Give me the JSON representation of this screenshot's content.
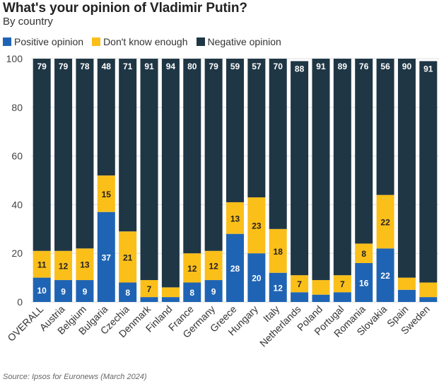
{
  "chart_data": {
    "type": "bar",
    "stacked": true,
    "title": "What's your opinion of Vladimir Putin?",
    "subtitle": "By country",
    "source": "Source: Ipsos for Euronews (March 2024)",
    "ylim": [
      0,
      100
    ],
    "yticks": [
      "0",
      "20",
      "40",
      "60",
      "80",
      "100"
    ],
    "legend_position": "top-left",
    "categories": [
      "OVERALL",
      "Austria",
      "Belgium",
      "Bulgaria",
      "Czechia",
      "Denmark",
      "Finland",
      "France",
      "Germany",
      "Greece",
      "Hungary",
      "Italy",
      "Netherlands",
      "Poland",
      "Portugal",
      "Romania",
      "Slovakia",
      "Spain",
      "Sweden"
    ],
    "series": [
      {
        "name": "Positive opinion",
        "color": "#1f64b4",
        "values": [
          10,
          9,
          9,
          37,
          8,
          2,
          2,
          8,
          9,
          28,
          20,
          12,
          4,
          3,
          4,
          16,
          22,
          5,
          2
        ],
        "labels": [
          "10",
          "9",
          "9",
          "37",
          "8",
          "",
          "",
          "8",
          "9",
          "28",
          "20",
          "12",
          "",
          "",
          "",
          "16",
          "22",
          "",
          ""
        ]
      },
      {
        "name": "Don't know enough",
        "color": "#fbbf1a",
        "values": [
          11,
          12,
          13,
          15,
          21,
          7,
          4,
          12,
          12,
          13,
          23,
          18,
          7,
          6,
          7,
          8,
          22,
          5,
          6
        ],
        "labels": [
          "11",
          "12",
          "13",
          "15",
          "21",
          "7",
          "",
          "12",
          "12",
          "13",
          "23",
          "18",
          "7",
          "",
          "7",
          "8",
          "22",
          "",
          ""
        ]
      },
      {
        "name": "Negative opinion",
        "color": "#1f3645",
        "values": [
          79,
          79,
          78,
          48,
          71,
          91,
          94,
          80,
          79,
          59,
          57,
          70,
          88,
          91,
          89,
          76,
          56,
          90,
          91
        ],
        "labels": [
          "79",
          "79",
          "78",
          "48",
          "71",
          "91",
          "94",
          "80",
          "79",
          "59",
          "57",
          "70",
          "88",
          "91",
          "89",
          "76",
          "56",
          "90",
          "91"
        ]
      }
    ]
  }
}
